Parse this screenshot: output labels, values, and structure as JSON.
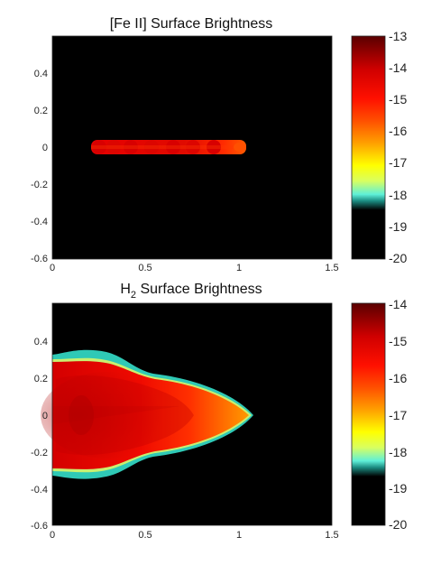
{
  "chart_data": [
    {
      "type": "heatmap",
      "title": "[Fe II] Surface Brightness",
      "xlim": [
        0,
        1.5
      ],
      "ylim": [
        -0.6,
        0.6
      ],
      "xticks": [
        "0",
        "0.5",
        "1",
        "1.5"
      ],
      "yticks": [
        "0.4",
        "0.2",
        "0",
        "-0.2",
        "-0.4",
        "-0.6"
      ],
      "colorbar": {
        "range": [
          -20,
          -13
        ],
        "ticks": [
          "-13",
          "-14",
          "-15",
          "-16",
          "-17",
          "-18",
          "-19",
          "-20"
        ]
      },
      "features": [
        {
          "shape": "jet",
          "x_start": 0.22,
          "x_end": 1.03,
          "half_width": 0.02,
          "level": -13.8
        }
      ],
      "background": "#000000"
    },
    {
      "type": "heatmap",
      "title_main": "H",
      "title_sub": "2",
      "title_rest": " Surface Brightness",
      "xlim": [
        0,
        1.5
      ],
      "ylim": [
        -0.6,
        0.6
      ],
      "xticks": [
        "0",
        "0.5",
        "1",
        "1.5"
      ],
      "yticks": [
        "0.4",
        "0.2",
        "0",
        "-0.2",
        "-0.4",
        "-0.6"
      ],
      "colorbar": {
        "range": [
          -20,
          -14
        ],
        "ticks": [
          "-14",
          "-15",
          "-16",
          "-17",
          "-18",
          "-19",
          "-20"
        ]
      },
      "features": [
        {
          "shape": "bow-shock",
          "x_start": 0,
          "x_tip": 1.08,
          "half_width": 0.29,
          "level": -15.2,
          "tip_level": -16.0,
          "edge_level": -18.0
        }
      ],
      "background": "#000000"
    }
  ],
  "colors": {
    "axis": "#262626",
    "cmap": [
      "#000000",
      "#000000",
      "#1ab9a8",
      "#5ff0d8",
      "#ffff00",
      "#ff8c00",
      "#ff2000",
      "#c80000",
      "#620000"
    ]
  }
}
